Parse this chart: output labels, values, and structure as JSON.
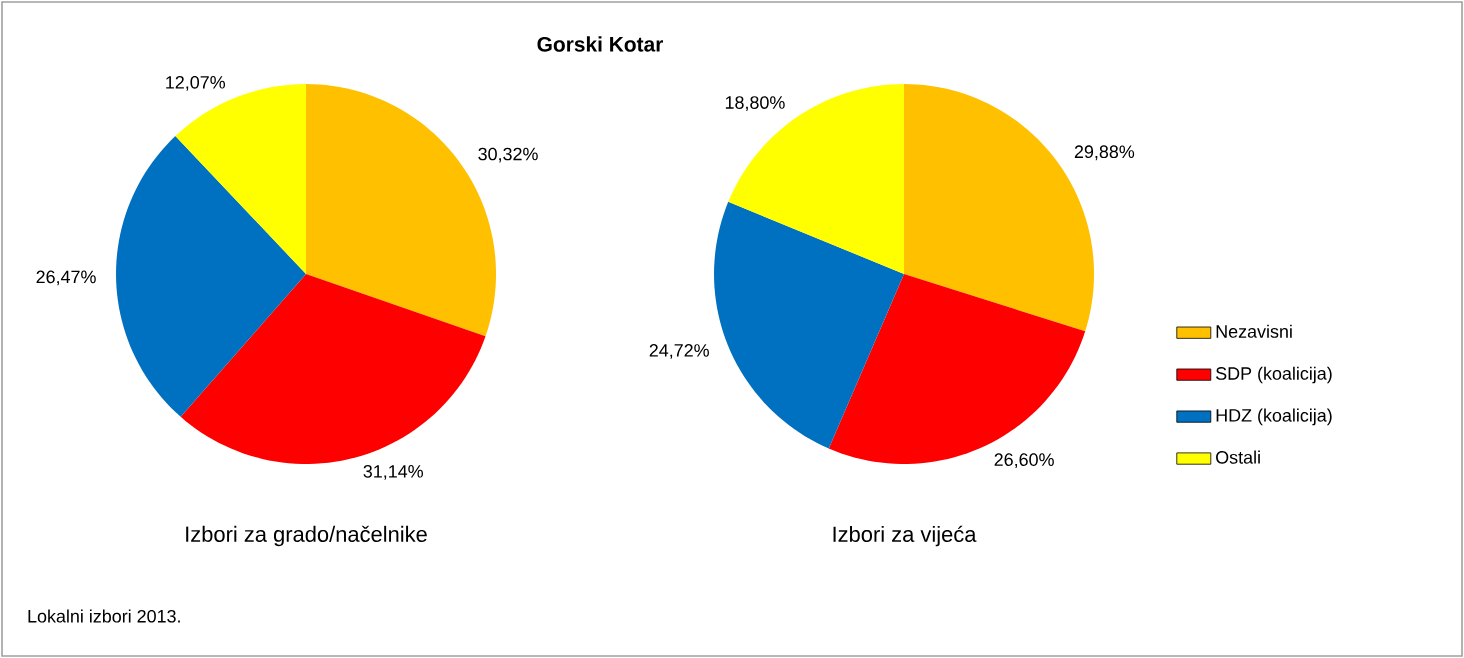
{
  "chart_data": [
    {
      "type": "pie",
      "title": "Izbori za grado/načelnike",
      "categories": [
        null,
        null,
        null,
        null
      ],
      "values": [
        30.32,
        31.14,
        26.47,
        12.07
      ],
      "value_labels": [
        "30,32%",
        "31,14%",
        "26,47%",
        "12,07%"
      ],
      "colors": [
        "#ffc000",
        "#ff0000",
        "#0070c0",
        "#ffff00"
      ],
      "annotations": [
        "Gorski Kotar",
        "Lokalni izbori 2013."
      ]
    },
    {
      "type": "pie",
      "title": "Izbori za vijeća",
      "categories": [
        "Nezavisni",
        "SDP (koalicija)",
        "HDZ (koalicija)",
        "Ostali"
      ],
      "values": [
        29.88,
        26.6,
        24.72,
        18.8
      ],
      "value_labels": [
        "29,88%",
        "26,60%",
        "24,72%",
        "18,80%"
      ],
      "colors": [
        "#ffc000",
        "#ff0000",
        "#0070c0",
        "#ffff00"
      ],
      "legend": "right"
    }
  ]
}
